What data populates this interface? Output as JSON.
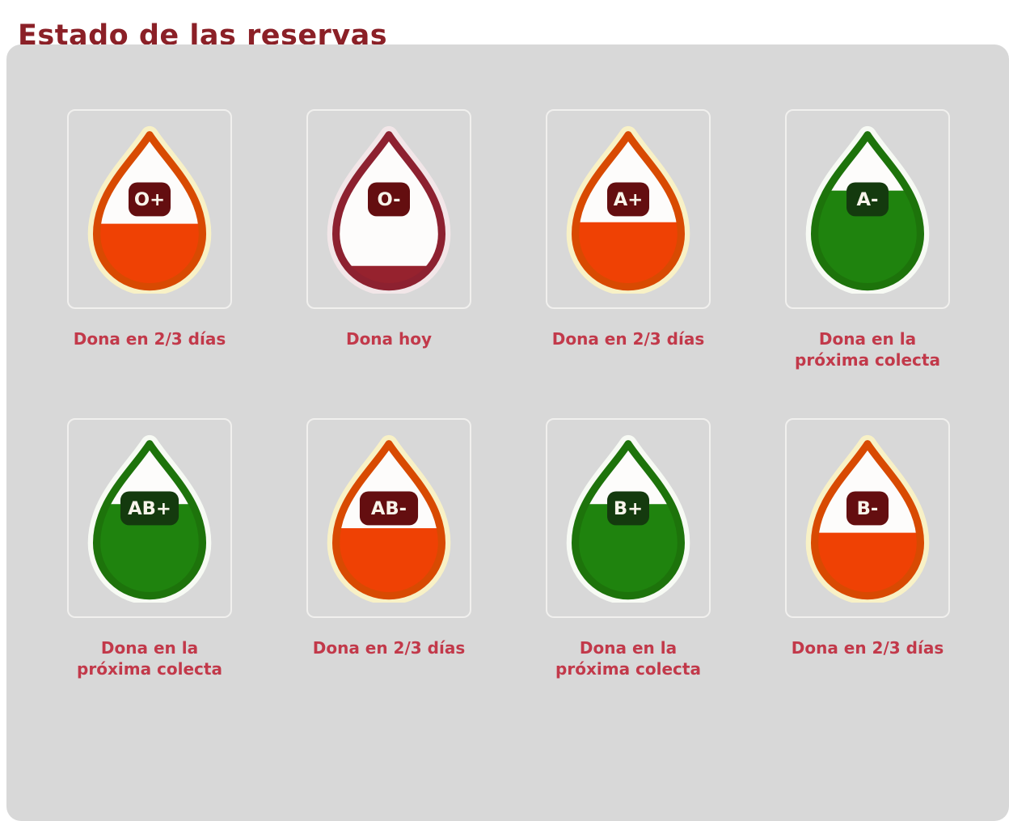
{
  "page": {
    "title": "Estado de las reservas"
  },
  "colors": {
    "title_text": "#8b2027",
    "label_text": "#c2394a",
    "panel_background": "#d8d8d8",
    "card_border": "#f1f0ee",
    "drop_interior": "#fdfcfb",
    "badge_text": "#f8f4ea",
    "drop_styles": {
      "orange": {
        "fill": "#ef4104",
        "stroke": "#d84a02",
        "glow": "#f8f1c6",
        "badge": "#640e10"
      },
      "green": {
        "fill": "#1f830e",
        "stroke": "#1d730b",
        "glow": "#f7faf4",
        "badge": "#143a0e"
      },
      "empty": {
        "fill": "#96222e",
        "stroke": "#8d2130",
        "glow": "#f2e6e8",
        "badge": "#640e10"
      }
    }
  },
  "reserves": [
    {
      "type": "O+",
      "status": "orange",
      "fill_percent": 41,
      "label_lines": [
        "Dona en 2/3 días"
      ]
    },
    {
      "type": "O-",
      "status": "empty",
      "fill_percent": 13,
      "label_lines": [
        "Dona hoy"
      ]
    },
    {
      "type": "A+",
      "status": "orange",
      "fill_percent": 42,
      "label_lines": [
        "Dona en 2/3 días"
      ]
    },
    {
      "type": "A-",
      "status": "green",
      "fill_percent": 63,
      "label_lines": [
        "Dona en la",
        "próxima colecta"
      ]
    },
    {
      "type": "AB+",
      "status": "green",
      "fill_percent": 60,
      "label_lines": [
        "Dona en la",
        "próxima colecta"
      ]
    },
    {
      "type": "AB-",
      "status": "orange",
      "fill_percent": 44,
      "label_lines": [
        "Dona en 2/3 días"
      ]
    },
    {
      "type": "B+",
      "status": "green",
      "fill_percent": 60,
      "label_lines": [
        "Dona en la",
        "próxima colecta"
      ]
    },
    {
      "type": "B-",
      "status": "orange",
      "fill_percent": 41,
      "label_lines": [
        "Dona en 2/3 días"
      ]
    }
  ]
}
